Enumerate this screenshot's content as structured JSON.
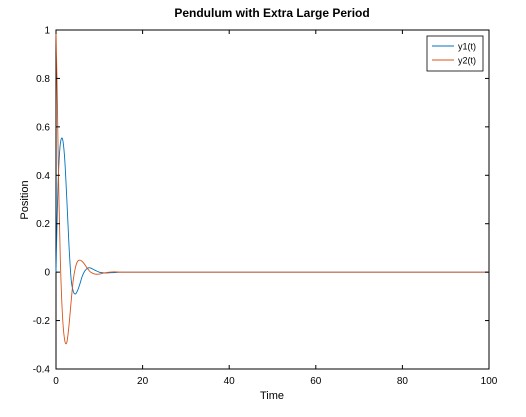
{
  "chart_data": {
    "type": "line",
    "title": "Pendulum with Extra Large Period",
    "xlabel": "Time",
    "ylabel": "Position",
    "xlim": [
      0,
      100
    ],
    "ylim": [
      -0.4,
      1
    ],
    "xticks": [
      0,
      20,
      40,
      60,
      80,
      100
    ],
    "yticks": [
      -0.4,
      -0.2,
      0,
      0.2,
      0.4,
      0.6,
      0.8,
      1
    ],
    "xtick_labels": [
      "0",
      "20",
      "40",
      "60",
      "80",
      "100"
    ],
    "ytick_labels": [
      "-0.4",
      "-0.2",
      "0",
      "0.2",
      "0.4",
      "0.6",
      "0.8",
      "1"
    ],
    "grid": false,
    "legend_position": "top-right",
    "series": [
      {
        "name": "y1(t)",
        "color": "#0072bd",
        "x": [
          0,
          0.3,
          0.6,
          1.0,
          1.5,
          2.0,
          2.5,
          3.0,
          3.5,
          4.0,
          4.5,
          5.0,
          5.5,
          6.0,
          6.5,
          7.0,
          7.5,
          8.0,
          9.0,
          10.0,
          11.0,
          12.0,
          13.0,
          14.0,
          15.0,
          20,
          30,
          40,
          50,
          60,
          70,
          80,
          90,
          100
        ],
        "y": [
          0,
          0.25,
          0.42,
          0.53,
          0.55,
          0.47,
          0.3,
          0.11,
          -0.03,
          -0.08,
          -0.09,
          -0.075,
          -0.05,
          -0.02,
          0.0,
          0.012,
          0.018,
          0.017,
          0.008,
          0.0,
          -0.003,
          -0.003,
          -0.002,
          -0.001,
          0,
          0,
          0,
          0,
          0,
          0,
          0,
          0,
          0,
          0
        ]
      },
      {
        "name": "y2(t)",
        "color": "#d95319",
        "x": [
          0,
          0.3,
          0.6,
          1.0,
          1.5,
          2.0,
          2.5,
          3.0,
          3.5,
          4.0,
          4.5,
          5.0,
          5.5,
          6.0,
          6.5,
          7.0,
          7.5,
          8.0,
          9.0,
          10.0,
          11.0,
          12.0,
          13.0,
          14.0,
          15.0,
          20,
          30,
          40,
          50,
          60,
          70,
          80,
          90,
          100
        ],
        "y": [
          1.0,
          0.72,
          0.38,
          0.05,
          -0.18,
          -0.28,
          -0.29,
          -0.22,
          -0.12,
          -0.03,
          0.02,
          0.045,
          0.05,
          0.045,
          0.035,
          0.022,
          0.01,
          0.0,
          -0.008,
          -0.008,
          -0.004,
          -0.001,
          0.001,
          0.001,
          0,
          0,
          0,
          0,
          0,
          0,
          0,
          0,
          0,
          0
        ]
      }
    ]
  }
}
